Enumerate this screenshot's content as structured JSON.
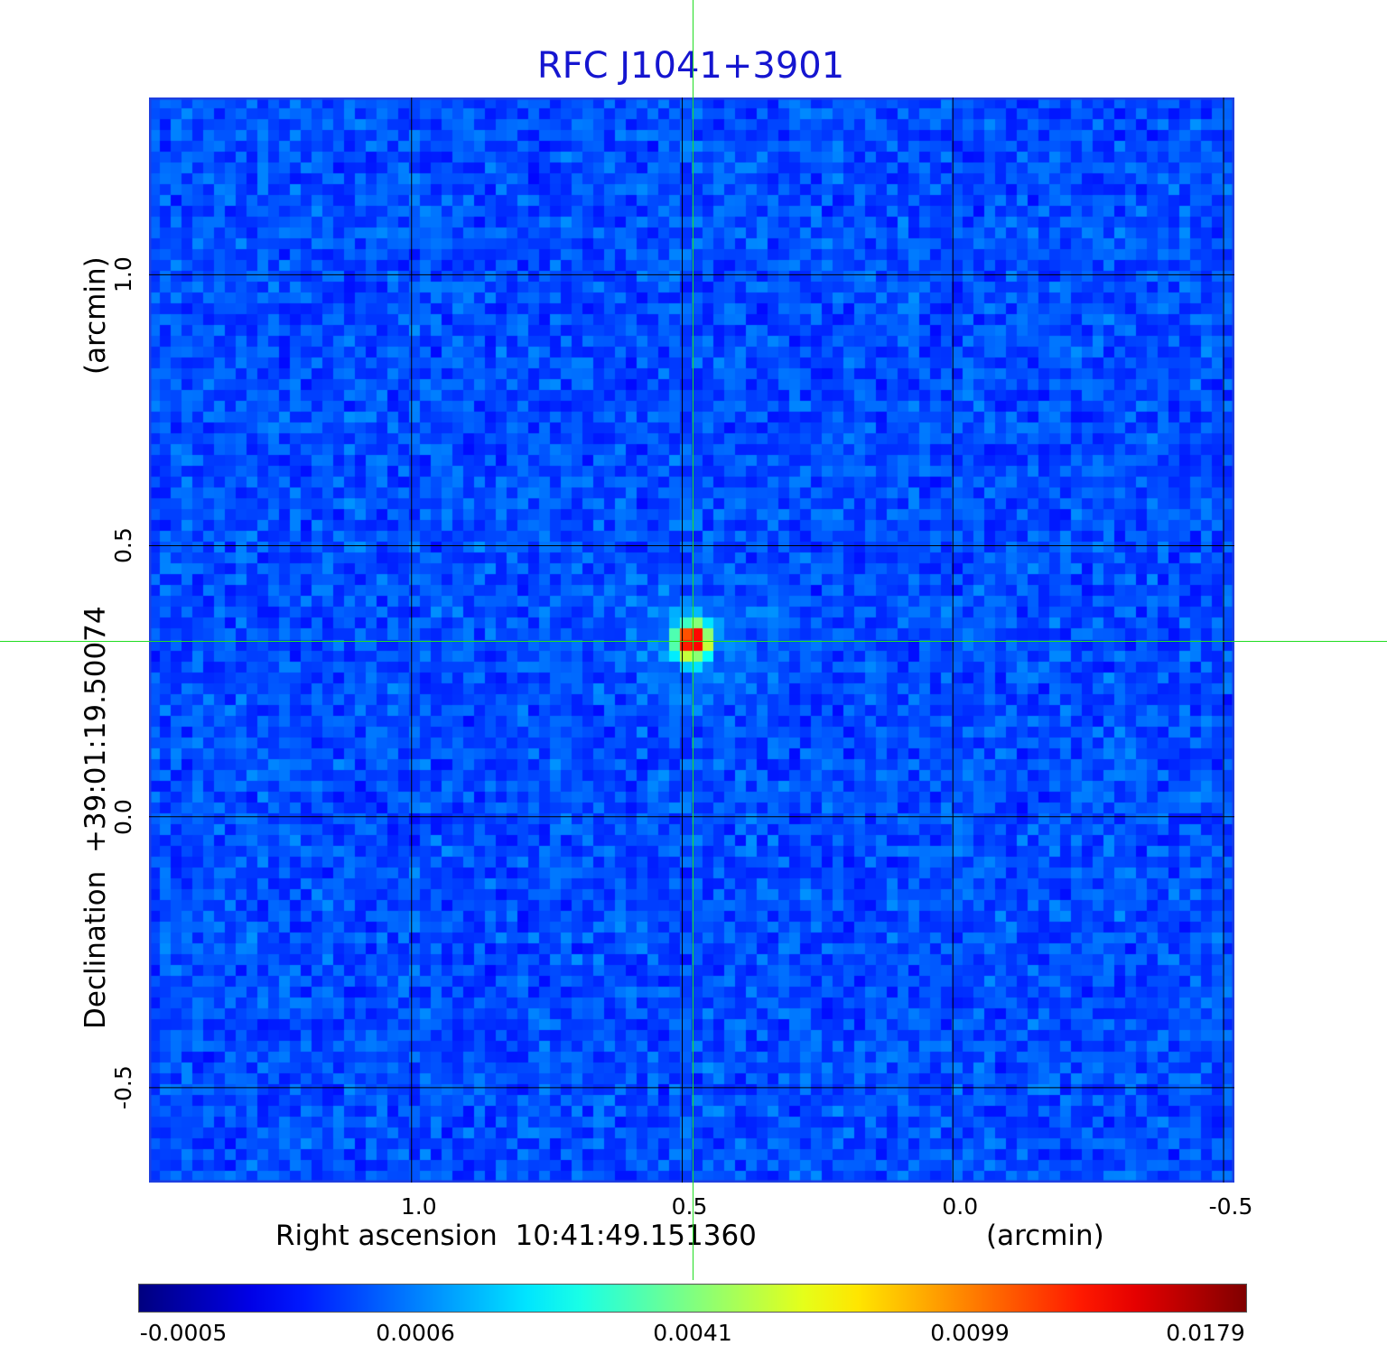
{
  "chart_data": {
    "type": "heatmap",
    "title": "RFC J1041+3901",
    "xlabel": "Right ascension  10:41:49.151360",
    "xunit": "(arcmin)",
    "ylabel": "Declination  +39:01:19.50074",
    "yunit": "(arcmin)",
    "x_ticks": [
      "1.0",
      "0.5",
      "0.0",
      "-0.5"
    ],
    "x_tick_values": [
      1.0,
      0.5,
      0.0,
      -0.5
    ],
    "xlim": [
      1.485,
      -0.52
    ],
    "y_ticks": [
      "1.0",
      "0.5",
      "0.0",
      "-0.5"
    ],
    "y_tick_values": [
      1.0,
      0.5,
      0.0,
      -0.5
    ],
    "ylim": [
      -0.675,
      1.327
    ],
    "grid": true,
    "grid_color": "#000000",
    "colormap": "jet",
    "colorbar": {
      "tick_labels": [
        "-0.0005",
        "0.0006",
        "0.0041",
        "0.0099",
        "0.0179"
      ],
      "tick_values": [
        -0.0005,
        0.0006,
        0.0041,
        0.0099,
        0.0179
      ],
      "range": [
        -0.0005,
        0.0179
      ],
      "placement": "bottom"
    },
    "peak": {
      "ra_offset_arcmin": 0.48,
      "dec_offset_arcmin": 0.325,
      "value": 0.0179
    },
    "crosshair": {
      "ra_offset_arcmin": 0.48,
      "dec_offset_arcmin": 0.325,
      "color": "#22dd22"
    },
    "background_color": "#2a6cf0",
    "title_color": "#1515d0"
  }
}
